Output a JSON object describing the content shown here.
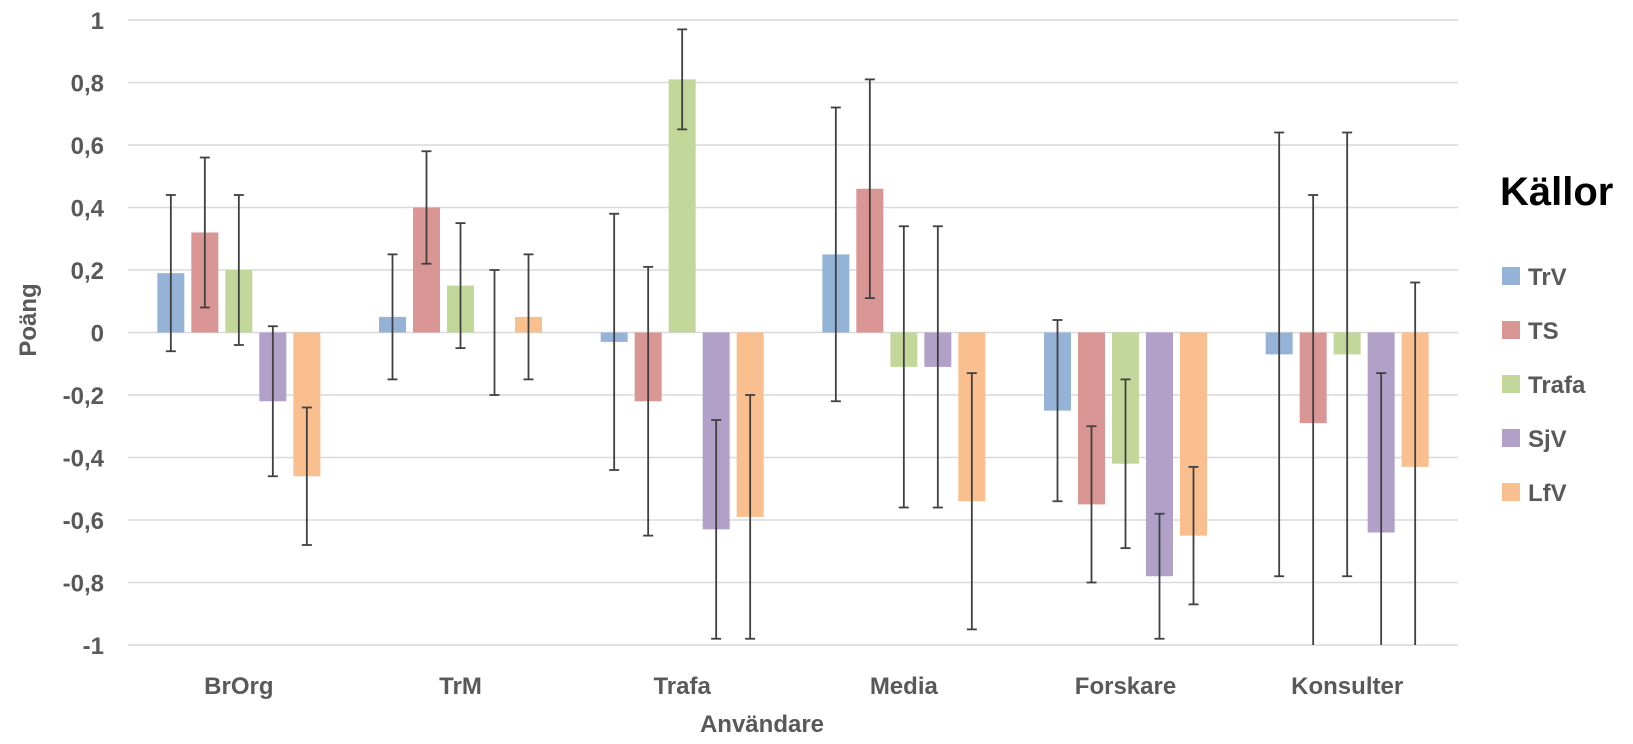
{
  "chart_data": {
    "type": "bar",
    "xlabel": "Användare",
    "ylabel": "Poäng",
    "ylim": [
      -1,
      1
    ],
    "yticks": [
      1,
      0.8,
      0.6,
      0.4,
      0.2,
      0,
      -0.2,
      -0.4,
      -0.6,
      -0.8,
      -1
    ],
    "ytick_labels": [
      "1",
      "0,8",
      "0,6",
      "0,4",
      "0,2",
      "0",
      "-0,2",
      "-0,4",
      "-0,6",
      "-0,8",
      "-1"
    ],
    "grid": true,
    "legend_title": "Källor",
    "legend_position": "right",
    "categories": [
      "BrOrg",
      "TrM",
      "Trafa",
      "Media",
      "Forskare",
      "Konsulter"
    ],
    "series": [
      {
        "name": "TrV",
        "color": "#95B3D7",
        "values": [
          0.19,
          0.05,
          -0.03,
          0.25,
          -0.25,
          -0.07
        ],
        "err_low": [
          -0.06,
          -0.15,
          -0.44,
          -0.22,
          -0.54,
          -0.78
        ],
        "err_high": [
          0.44,
          0.25,
          0.38,
          0.72,
          0.04,
          0.64
        ]
      },
      {
        "name": "TS",
        "color": "#DA9694",
        "values": [
          0.32,
          0.4,
          -0.22,
          0.46,
          -0.55,
          -0.29
        ],
        "err_low": [
          0.08,
          0.22,
          -0.65,
          0.11,
          -0.8,
          -1.0
        ],
        "err_high": [
          0.56,
          0.58,
          0.21,
          0.81,
          -0.3,
          0.44
        ]
      },
      {
        "name": "Trafa",
        "color": "#C4D79B",
        "values": [
          0.2,
          0.15,
          0.81,
          -0.11,
          -0.42,
          -0.07
        ],
        "err_low": [
          -0.04,
          -0.05,
          0.65,
          -0.56,
          -0.69,
          -0.78
        ],
        "err_high": [
          0.44,
          0.35,
          0.97,
          0.34,
          -0.15,
          0.64
        ]
      },
      {
        "name": "SjV",
        "color": "#B1A0C7",
        "values": [
          -0.22,
          0.0,
          -0.63,
          -0.11,
          -0.78,
          -0.64
        ],
        "err_low": [
          -0.46,
          -0.2,
          -0.98,
          -0.56,
          -0.98,
          -1.0
        ],
        "err_high": [
          0.02,
          0.2,
          -0.28,
          0.34,
          -0.58,
          -0.13
        ]
      },
      {
        "name": "LfV",
        "color": "#FABF8F",
        "values": [
          -0.46,
          0.05,
          -0.59,
          -0.54,
          -0.65,
          -0.43
        ],
        "err_low": [
          -0.68,
          -0.15,
          -0.98,
          -0.95,
          -0.87,
          -1.0
        ],
        "err_high": [
          -0.24,
          0.25,
          -0.2,
          -0.13,
          -0.43,
          0.16
        ]
      }
    ]
  }
}
